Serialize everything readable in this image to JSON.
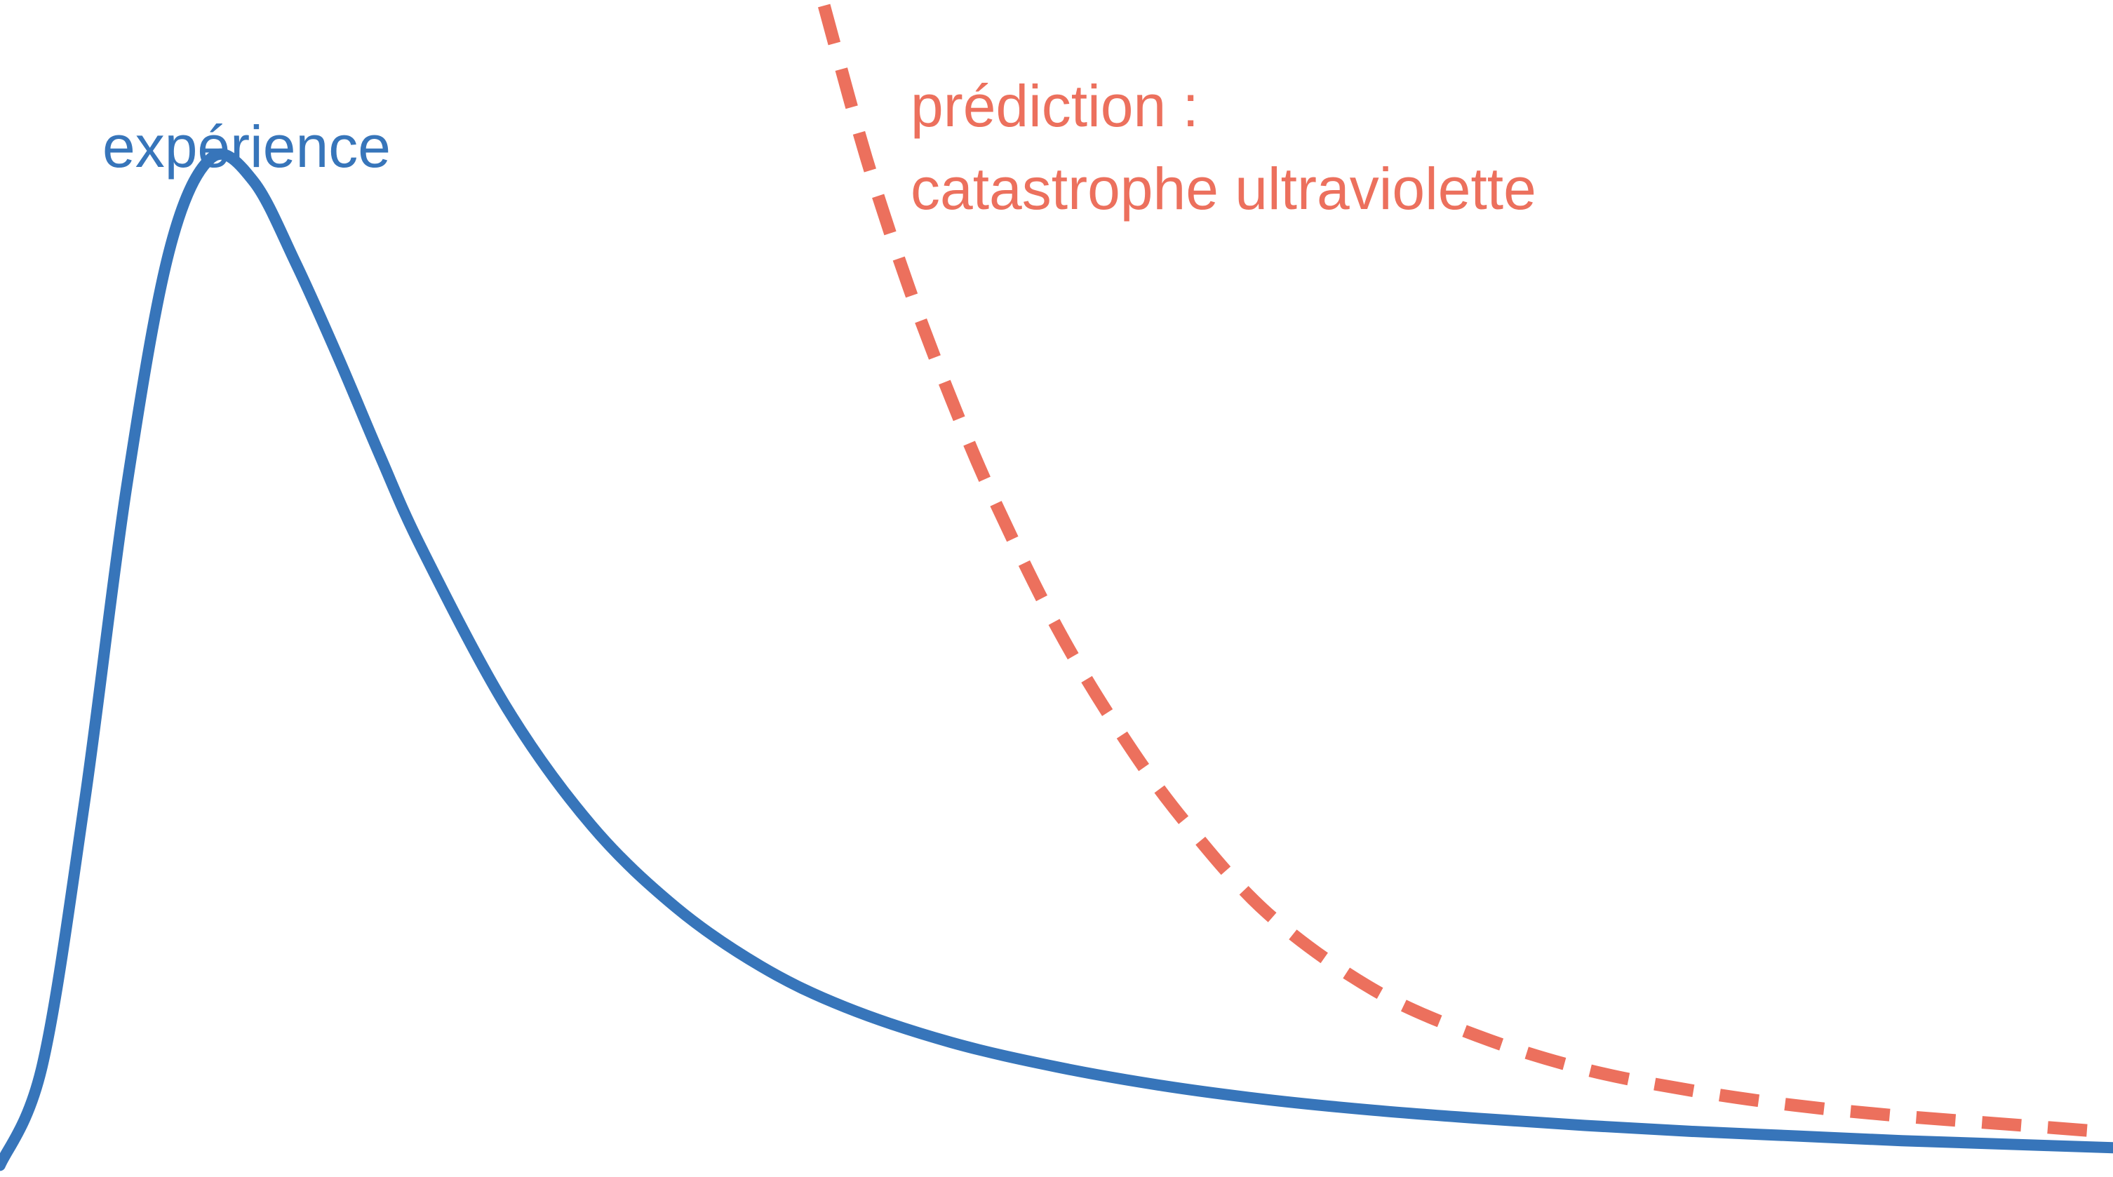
{
  "colors": {
    "experiment": "#3775ba",
    "prediction": "#ec705d",
    "background": "#ffffff"
  },
  "chart_data": {
    "type": "line",
    "title": "",
    "xlabel": "",
    "ylabel": "",
    "grid": false,
    "axes_visible": false,
    "xlim": [
      0,
      1
    ],
    "ylim": [
      0,
      1
    ],
    "series": [
      {
        "name": "expérience",
        "style": "solid",
        "color": "#3775ba",
        "x": [
          0.0,
          0.02,
          0.04,
          0.06,
          0.08,
          0.1,
          0.12,
          0.14,
          0.16,
          0.18,
          0.2,
          0.24,
          0.28,
          0.32,
          0.36,
          0.4,
          0.45,
          0.5,
          0.55,
          0.6,
          0.65,
          0.7,
          0.75,
          0.8,
          0.85,
          0.9,
          0.95,
          1.0
        ],
        "y": [
          0.01,
          0.095,
          0.32,
          0.59,
          0.79,
          0.87,
          0.85,
          0.78,
          0.7,
          0.615,
          0.535,
          0.4,
          0.3,
          0.23,
          0.18,
          0.145,
          0.115,
          0.094,
          0.078,
          0.066,
          0.057,
          0.05,
          0.044,
          0.039,
          0.035,
          0.031,
          0.028,
          0.025
        ]
      },
      {
        "name": "prédiction : catastrophe ultraviolette",
        "style": "dashed",
        "color": "#ec705d",
        "x": [
          0.39,
          0.41,
          0.43,
          0.45,
          0.47,
          0.5,
          0.53,
          0.56,
          0.6,
          0.65,
          0.7,
          0.75,
          0.8,
          0.85,
          0.9,
          0.95,
          1.0
        ],
        "y": [
          1.0,
          0.87,
          0.76,
          0.665,
          0.58,
          0.47,
          0.38,
          0.305,
          0.225,
          0.16,
          0.12,
          0.092,
          0.074,
          0.061,
          0.052,
          0.045,
          0.038
        ]
      }
    ],
    "annotations": [
      {
        "text": "expérience",
        "color": "#3775ba"
      },
      {
        "text": "prédiction :",
        "color": "#ec705d"
      },
      {
        "text": "catastrophe ultraviolette",
        "color": "#ec705d"
      }
    ]
  }
}
